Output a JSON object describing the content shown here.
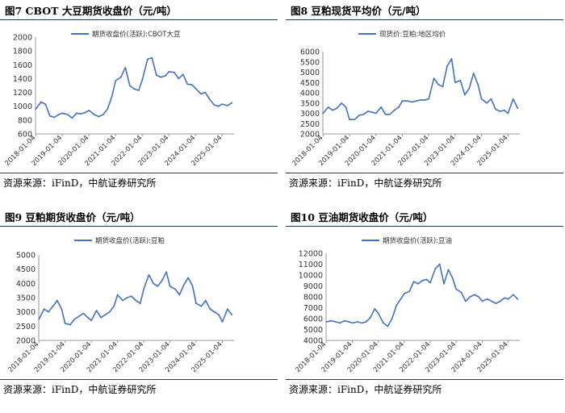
{
  "source_label": "资源来源：iFinD，中航证券研究所",
  "panels": [
    {
      "title": "图7  CBOT 大豆期货收盘价（元/吨）"
    },
    {
      "title": "图8  豆粕现货平均价（元/吨）"
    },
    {
      "title": "图9  豆粕期货收盘价（元/吨）"
    },
    {
      "title": "图10  豆油期货收盘价（元/吨）"
    }
  ],
  "colors": {
    "line": "#4472c4",
    "rule": "#1f3864"
  },
  "chart_data": [
    {
      "type": "line",
      "title": "",
      "series": [
        {
          "name": "期货收盘价(活跃):CBOT大豆",
          "x": [
            "2018-01-04",
            "2018-03",
            "2018-05",
            "2018-07",
            "2018-09",
            "2018-11",
            "2019-01-04",
            "2019-03",
            "2019-05",
            "2019-07",
            "2019-09",
            "2019-11",
            "2020-01-04",
            "2020-03",
            "2020-05",
            "2020-07",
            "2020-09",
            "2020-11",
            "2021-01-04",
            "2021-03",
            "2021-05",
            "2021-07",
            "2021-09",
            "2021-11",
            "2022-01-04",
            "2022-03",
            "2022-05",
            "2022-07",
            "2022-09",
            "2022-11",
            "2023-01-04",
            "2023-03",
            "2023-05",
            "2023-07",
            "2023-09",
            "2023-11",
            "2024-01-04",
            "2024-03",
            "2024-05",
            "2024-07",
            "2024-09",
            "2024-11",
            "2025-01-04",
            "2025-03",
            "2025-05"
          ],
          "values": [
            960,
            1060,
            1030,
            860,
            840,
            880,
            900,
            880,
            830,
            900,
            890,
            910,
            940,
            880,
            850,
            880,
            960,
            1150,
            1370,
            1420,
            1560,
            1300,
            1250,
            1230,
            1380,
            1680,
            1700,
            1450,
            1420,
            1440,
            1500,
            1490,
            1400,
            1460,
            1320,
            1310,
            1260,
            1180,
            1200,
            1100,
            1020,
            1000,
            1030,
            1010,
            1050
          ]
        }
      ],
      "yticks": [
        600,
        800,
        1000,
        1200,
        1400,
        1600,
        1800,
        2000
      ],
      "ylim": [
        600,
        2000
      ],
      "xticks": [
        "2018-01-04",
        "2019-01-04",
        "2020-01-04",
        "2021-01-04",
        "2022-01-04",
        "2023-01-04",
        "2024-01-04",
        "2025-01-04"
      ]
    },
    {
      "type": "line",
      "title": "",
      "series": [
        {
          "name": "现货价:豆粕:地区均价",
          "x": [
            "2018-01-04",
            "2018-03",
            "2018-05",
            "2018-07",
            "2018-09",
            "2018-11",
            "2019-01-04",
            "2019-03",
            "2019-05",
            "2019-07",
            "2019-09",
            "2019-11",
            "2020-01-04",
            "2020-03",
            "2020-05",
            "2020-07",
            "2020-09",
            "2020-11",
            "2021-01-04",
            "2021-03",
            "2021-05",
            "2021-07",
            "2021-09",
            "2021-11",
            "2022-01-04",
            "2022-03",
            "2022-05",
            "2022-07",
            "2022-09",
            "2022-11",
            "2023-01-04",
            "2023-03",
            "2023-05",
            "2023-07",
            "2023-09",
            "2023-11",
            "2024-01-04",
            "2024-03",
            "2024-05",
            "2024-07",
            "2024-09",
            "2024-11",
            "2025-01-04",
            "2025-03",
            "2025-05"
          ],
          "values": [
            3000,
            3300,
            3150,
            3250,
            3500,
            3300,
            2700,
            2700,
            2900,
            2950,
            3100,
            3050,
            3000,
            3300,
            2950,
            2950,
            3150,
            3300,
            3600,
            3600,
            3550,
            3600,
            3650,
            3650,
            3700,
            4700,
            4400,
            4300,
            5300,
            5650,
            4500,
            4600,
            3900,
            4200,
            4950,
            4400,
            3700,
            3500,
            3700,
            3200,
            3100,
            3150,
            3000,
            3700,
            3250
          ]
        }
      ],
      "yticks": [
        2000,
        2500,
        3000,
        3500,
        4000,
        4500,
        5000,
        5500,
        6000
      ],
      "ylim": [
        2000,
        6000
      ],
      "xticks": [
        "2018-01-04",
        "2019-01-04",
        "2020-01-04",
        "2021-01-04",
        "2022-01-04",
        "2023-01-04",
        "2024-01-04",
        "2025-01-04"
      ]
    },
    {
      "type": "line",
      "title": "",
      "series": [
        {
          "name": "期货收盘价(活跃):豆粕",
          "x": [
            "2018-01-04",
            "2018-03",
            "2018-05",
            "2018-07",
            "2018-09",
            "2018-11",
            "2019-01-04",
            "2019-03",
            "2019-05",
            "2019-07",
            "2019-09",
            "2019-11",
            "2020-01-04",
            "2020-03",
            "2020-05",
            "2020-07",
            "2020-09",
            "2020-11",
            "2021-01-04",
            "2021-03",
            "2021-05",
            "2021-07",
            "2021-09",
            "2021-11",
            "2022-01-04",
            "2022-03",
            "2022-05",
            "2022-07",
            "2022-09",
            "2022-11",
            "2023-01-04",
            "2023-03",
            "2023-05",
            "2023-07",
            "2023-09",
            "2023-11",
            "2024-01-04",
            "2024-03",
            "2024-05",
            "2024-07",
            "2024-09",
            "2024-11",
            "2025-01-04",
            "2025-03",
            "2025-05"
          ],
          "values": [
            2750,
            3100,
            3000,
            3200,
            3400,
            3100,
            2600,
            2550,
            2750,
            2850,
            2950,
            2800,
            2700,
            3050,
            2800,
            2900,
            3000,
            3200,
            3600,
            3400,
            3500,
            3550,
            3400,
            3300,
            3800,
            4300,
            4000,
            3900,
            4100,
            4400,
            3900,
            3800,
            3600,
            3950,
            4200,
            3900,
            3300,
            3200,
            3400,
            3100,
            3000,
            2900,
            2650,
            3100,
            2900
          ]
        }
      ],
      "yticks": [
        2000,
        2500,
        3000,
        3500,
        4000,
        4500,
        5000
      ],
      "ylim": [
        2000,
        5000
      ],
      "xticks": [
        "2018-01-04",
        "2019-01-04",
        "2020-01-04",
        "2021-01-04",
        "2022-01-04",
        "2023-01-04",
        "2024-01-04",
        "2025-01-04"
      ]
    },
    {
      "type": "line",
      "title": "",
      "series": [
        {
          "name": "期货收盘价(活跃):豆油",
          "x": [
            "2018-01-04",
            "2018-03",
            "2018-05",
            "2018-07",
            "2018-09",
            "2018-11",
            "2019-01-04",
            "2019-03",
            "2019-05",
            "2019-07",
            "2019-09",
            "2019-11",
            "2020-01-04",
            "2020-03",
            "2020-05",
            "2020-07",
            "2020-09",
            "2020-11",
            "2021-01-04",
            "2021-03",
            "2021-05",
            "2021-07",
            "2021-09",
            "2021-11",
            "2022-01-04",
            "2022-03",
            "2022-05",
            "2022-07",
            "2022-09",
            "2022-11",
            "2023-01-04",
            "2023-03",
            "2023-05",
            "2023-07",
            "2023-09",
            "2023-11",
            "2024-01-04",
            "2024-03",
            "2024-05",
            "2024-07",
            "2024-09",
            "2024-11",
            "2025-01-04",
            "2025-03",
            "2025-05"
          ],
          "values": [
            5700,
            5800,
            5700,
            5600,
            5800,
            5700,
            5600,
            5700,
            5600,
            5700,
            6100,
            6900,
            6500,
            5600,
            5300,
            6000,
            7200,
            7800,
            8300,
            8500,
            9400,
            9200,
            9500,
            9600,
            9300,
            10600,
            11000,
            9200,
            10500,
            9700,
            8700,
            8400,
            7600,
            8000,
            8200,
            8000,
            7600,
            7800,
            7600,
            7400,
            7600,
            7900,
            7800,
            8200,
            7800
          ]
        }
      ],
      "yticks": [
        4000,
        5000,
        6000,
        7000,
        8000,
        9000,
        10000,
        11000,
        12000
      ],
      "ylim": [
        4000,
        12000
      ],
      "xticks": [
        "2018-01-04",
        "2019-01-04",
        "2020-01-04",
        "2021-01-04",
        "2022-01-04",
        "2023-01-04",
        "2024-01-04",
        "2025-01-04"
      ]
    }
  ]
}
